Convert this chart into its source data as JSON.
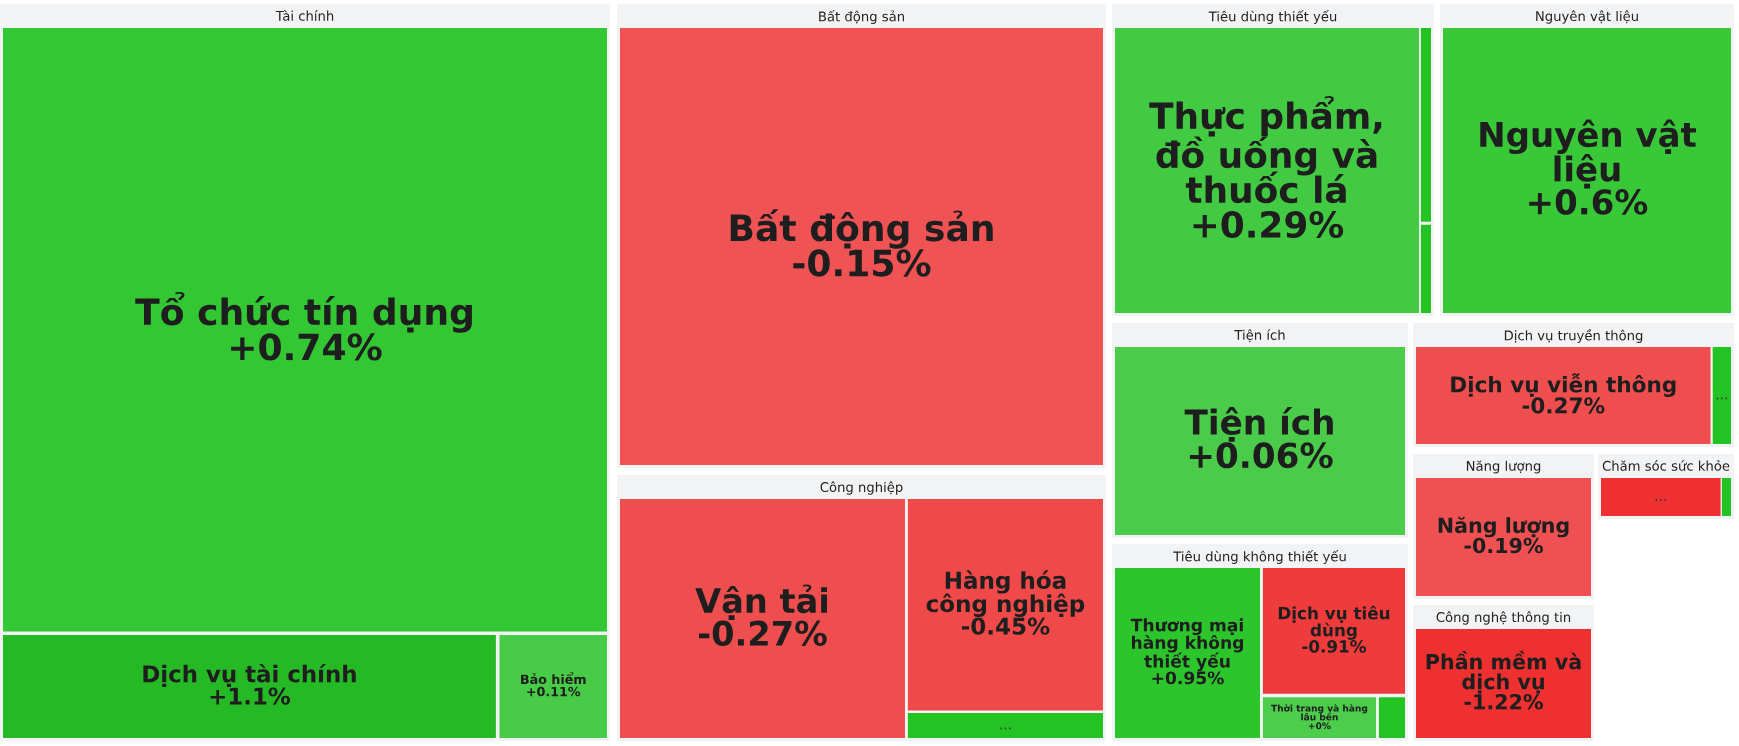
{
  "chart_data": {
    "type": "other",
    "annotations": [
      "Tài chính",
      "Bất động sản",
      "Công nghiệp",
      "Tiêu dùng thiết yếu",
      "Nguyên vật liệu",
      "Tiện ích",
      "Dịch vụ truyền thông",
      "Năng lượng",
      "Chăm sóc sức khỏe",
      "Tiêu dùng không thiết yếu",
      "Công nghệ thông tin"
    ],
    "categories": [
      "Tổ chức tín dụng",
      "Dịch vụ tài chính",
      "Bảo hiểm",
      "Bất động sản",
      "Vận tải",
      "Hàng hóa công nghiệp",
      null,
      "Thực phẩm, đồ uống và thuốc lá",
      null,
      null,
      "Nguyên vật liệu",
      "Tiện ích",
      "Dịch vụ viễn thông",
      null,
      "Năng lượng",
      null,
      null,
      "Thương mại hàng không thiết yếu",
      "Dịch vụ tiêu dùng",
      "Thời trang và hàng lâu bền",
      null,
      "Phần mềm và dịch vụ"
    ],
    "values": [
      0.74,
      1.1,
      0.11,
      -0.15,
      -0.27,
      -0.45,
      null,
      0.29,
      null,
      null,
      0.6,
      0.06,
      -0.27,
      null,
      -0.19,
      null,
      null,
      0.95,
      -0.91,
      0,
      null,
      -1.22
    ],
    "value_labels": [
      "+0.74%",
      "+1.1%",
      "+0.11%",
      "-0.15%",
      "-0.27%",
      "-0.45%",
      "...",
      "+0.29%",
      null,
      null,
      "+0.6%",
      "+0.06%",
      "-0.27%",
      "...",
      "-0.19%",
      "...",
      null,
      "+0.95%",
      "-0.91%",
      "+0%",
      null,
      "-1.22%"
    ],
    "colors": [
      "#22c322",
      "#22b822",
      "#22c322",
      "#ee3030",
      "#ee3030",
      "#ee3030",
      "#22c322",
      "#22c322",
      "#22c322",
      "#22c322",
      "#22c322",
      "#22c322",
      "#ee3030",
      "#22c322",
      "#ee3030",
      "#ee3030",
      "#22c322",
      "#22c322",
      "#ee3030",
      "#22c322",
      "#22c322",
      "#ee3030"
    ]
  }
}
